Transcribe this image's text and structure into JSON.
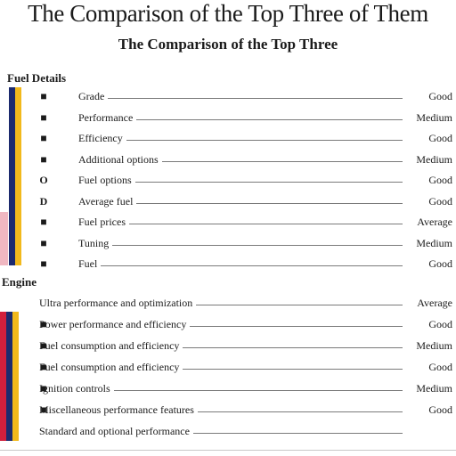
{
  "header": {
    "title": "The Comparison of the Top Three of Them",
    "subtitle": "The Comparison of the Top Three"
  },
  "colors": {
    "navy": "#1c2a6e",
    "yellow": "#f2b91c",
    "pink": "#f0b7c1",
    "red": "#d11f3c",
    "leader": "#7a7a7a"
  },
  "sections": [
    {
      "heading": "Fuel Details",
      "rows": [
        {
          "marker": "■",
          "label": "Grade",
          "value": "Good"
        },
        {
          "marker": "■",
          "label": "Performance",
          "value": "Medium"
        },
        {
          "marker": "■",
          "label": "Efficiency",
          "value": "Good"
        },
        {
          "marker": "■",
          "label": "Additional options",
          "value": "Medium"
        },
        {
          "marker": "O",
          "label": "Fuel options",
          "value": "Good"
        },
        {
          "marker": "D",
          "label": "Average fuel",
          "value": "Good"
        },
        {
          "marker": "■",
          "label": "Fuel prices",
          "value": "Average"
        },
        {
          "marker": "■",
          "label": "Tuning",
          "value": "Medium"
        },
        {
          "marker": "■",
          "label": "Fuel",
          "value": "Good"
        }
      ]
    },
    {
      "heading": "Engine",
      "rows": [
        {
          "marker": "",
          "label": "Ultra performance and optimization",
          "value": "Average"
        },
        {
          "marker": "■",
          "label": "Power performance and efficiency",
          "value": "Good"
        },
        {
          "marker": "■",
          "label": "Fuel consumption and efficiency",
          "value": "Medium"
        },
        {
          "marker": "■",
          "label": "Fuel consumption and efficiency",
          "value": "Good"
        },
        {
          "marker": "■",
          "label": "Ignition controls",
          "value": "Medium"
        },
        {
          "marker": "■",
          "label": "Miscellaneous performance features",
          "value": "Good"
        },
        {
          "marker": "",
          "label": "Standard and optional performance",
          "value": ""
        }
      ]
    }
  ]
}
